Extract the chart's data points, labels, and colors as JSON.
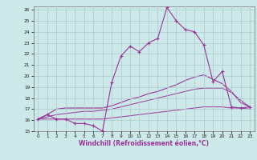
{
  "xlabel": "Windchill (Refroidissement éolien,°C)",
  "bg_color": "#cce8e8",
  "grid_color": "#aacccc",
  "line_color": "#993399",
  "x_hours": [
    0,
    1,
    2,
    3,
    4,
    5,
    6,
    7,
    8,
    9,
    10,
    11,
    12,
    13,
    14,
    15,
    16,
    17,
    18,
    19,
    20,
    21,
    22,
    23
  ],
  "y_actual": [
    16.1,
    16.5,
    16.1,
    16.1,
    15.7,
    15.7,
    15.5,
    15.0,
    19.4,
    21.8,
    22.7,
    22.2,
    23.0,
    23.4,
    26.2,
    25.0,
    24.2,
    24.0,
    22.8,
    19.5,
    20.4,
    17.2,
    17.1,
    17.2
  ],
  "y_smooth1": [
    16.1,
    16.5,
    17.0,
    17.1,
    17.1,
    17.1,
    17.1,
    17.1,
    17.3,
    17.6,
    17.9,
    18.1,
    18.4,
    18.6,
    18.9,
    19.2,
    19.6,
    19.9,
    20.1,
    19.7,
    19.3,
    18.6,
    17.6,
    17.2
  ],
  "y_smooth2": [
    16.1,
    16.3,
    16.5,
    16.6,
    16.7,
    16.8,
    16.8,
    16.9,
    17.0,
    17.2,
    17.4,
    17.6,
    17.8,
    18.0,
    18.2,
    18.4,
    18.6,
    18.8,
    18.9,
    18.9,
    18.9,
    18.5,
    17.8,
    17.2
  ],
  "y_flat": [
    16.1,
    16.1,
    16.1,
    16.1,
    16.1,
    16.1,
    16.1,
    16.1,
    16.2,
    16.3,
    16.4,
    16.5,
    16.6,
    16.7,
    16.8,
    16.9,
    17.0,
    17.1,
    17.2,
    17.2,
    17.2,
    17.1,
    17.1,
    17.0
  ],
  "ylim": [
    15,
    26
  ],
  "xlim": [
    -0.5,
    23.5
  ],
  "yticks": [
    15,
    16,
    17,
    18,
    19,
    20,
    21,
    22,
    23,
    24,
    25,
    26
  ],
  "xticks": [
    0,
    1,
    2,
    3,
    4,
    5,
    6,
    7,
    8,
    9,
    10,
    11,
    12,
    13,
    14,
    15,
    16,
    17,
    18,
    19,
    20,
    21,
    22,
    23
  ]
}
